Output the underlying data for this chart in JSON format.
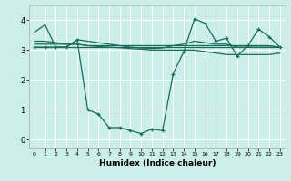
{
  "xlabel": "Humidex (Indice chaleur)",
  "bg_color": "#cceee8",
  "grid_color": "#ffffff",
  "line_color": "#1a6b5a",
  "xlim": [
    -0.5,
    23.5
  ],
  "ylim": [
    -0.3,
    4.5
  ],
  "yticks": [
    0,
    1,
    2,
    3,
    4
  ],
  "xticks": [
    0,
    1,
    2,
    3,
    4,
    5,
    6,
    7,
    8,
    9,
    10,
    11,
    12,
    13,
    14,
    15,
    16,
    17,
    18,
    19,
    20,
    21,
    22,
    23
  ],
  "series": [
    {
      "x": [
        0,
        1,
        2,
        3,
        4,
        5,
        6,
        7,
        8,
        9,
        10,
        11,
        12,
        13,
        14,
        15,
        16,
        17,
        18,
        19,
        20,
        21,
        22,
        23
      ],
      "y": [
        3.1,
        3.1,
        3.1,
        3.1,
        3.1,
        3.1,
        3.1,
        3.1,
        3.1,
        3.1,
        3.1,
        3.1,
        3.1,
        3.1,
        3.1,
        3.1,
        3.1,
        3.1,
        3.1,
        3.1,
        3.1,
        3.1,
        3.1,
        3.1
      ],
      "marker": false,
      "lw": 0.9
    },
    {
      "x": [
        0,
        1,
        2,
        3,
        4,
        5,
        6,
        7,
        8,
        9,
        10,
        11,
        12,
        13,
        14,
        15,
        16,
        17,
        18,
        19,
        20,
        21,
        22,
        23
      ],
      "y": [
        3.2,
        3.2,
        3.2,
        3.2,
        3.2,
        3.15,
        3.15,
        3.15,
        3.15,
        3.15,
        3.15,
        3.15,
        3.15,
        3.15,
        3.15,
        3.15,
        3.15,
        3.15,
        3.15,
        3.15,
        3.15,
        3.15,
        3.15,
        3.1
      ],
      "marker": false,
      "lw": 0.9
    },
    {
      "x": [
        0,
        1,
        2,
        3,
        4,
        5,
        6,
        7,
        8,
        9,
        10,
        11,
        12,
        13,
        14,
        15,
        16,
        17,
        18,
        19,
        20,
        21,
        22,
        23
      ],
      "y": [
        3.3,
        3.3,
        3.25,
        3.2,
        3.2,
        3.15,
        3.12,
        3.1,
        3.08,
        3.05,
        3.03,
        3.0,
        3.0,
        3.0,
        3.0,
        3.0,
        2.95,
        2.9,
        2.85,
        2.85,
        2.85,
        2.85,
        2.85,
        2.9
      ],
      "marker": false,
      "lw": 0.9
    },
    {
      "x": [
        0,
        1,
        2,
        3,
        4,
        5,
        6,
        7,
        8,
        9,
        10,
        11,
        12,
        13,
        14,
        15,
        16,
        17,
        18,
        19,
        20,
        21,
        22,
        23
      ],
      "y": [
        3.6,
        3.85,
        3.1,
        3.1,
        3.35,
        3.3,
        3.25,
        3.2,
        3.15,
        3.1,
        3.07,
        3.05,
        3.07,
        3.15,
        3.2,
        3.3,
        3.25,
        3.2,
        3.2,
        3.1,
        3.1,
        3.1,
        3.1,
        3.1
      ],
      "marker": false,
      "lw": 0.9
    },
    {
      "x": [
        0,
        1,
        2,
        3,
        4,
        5,
        6,
        7,
        8,
        9,
        10,
        11,
        12,
        13,
        14,
        15,
        16,
        17,
        18,
        19,
        20,
        21,
        22,
        23
      ],
      "y": [
        3.1,
        3.1,
        3.1,
        3.1,
        3.35,
        1.0,
        0.85,
        0.4,
        0.4,
        0.3,
        0.2,
        0.35,
        0.3,
        2.2,
        2.95,
        4.05,
        3.9,
        3.3,
        3.4,
        2.8,
        3.15,
        3.7,
        3.45,
        3.1
      ],
      "marker": true,
      "lw": 0.9
    }
  ]
}
